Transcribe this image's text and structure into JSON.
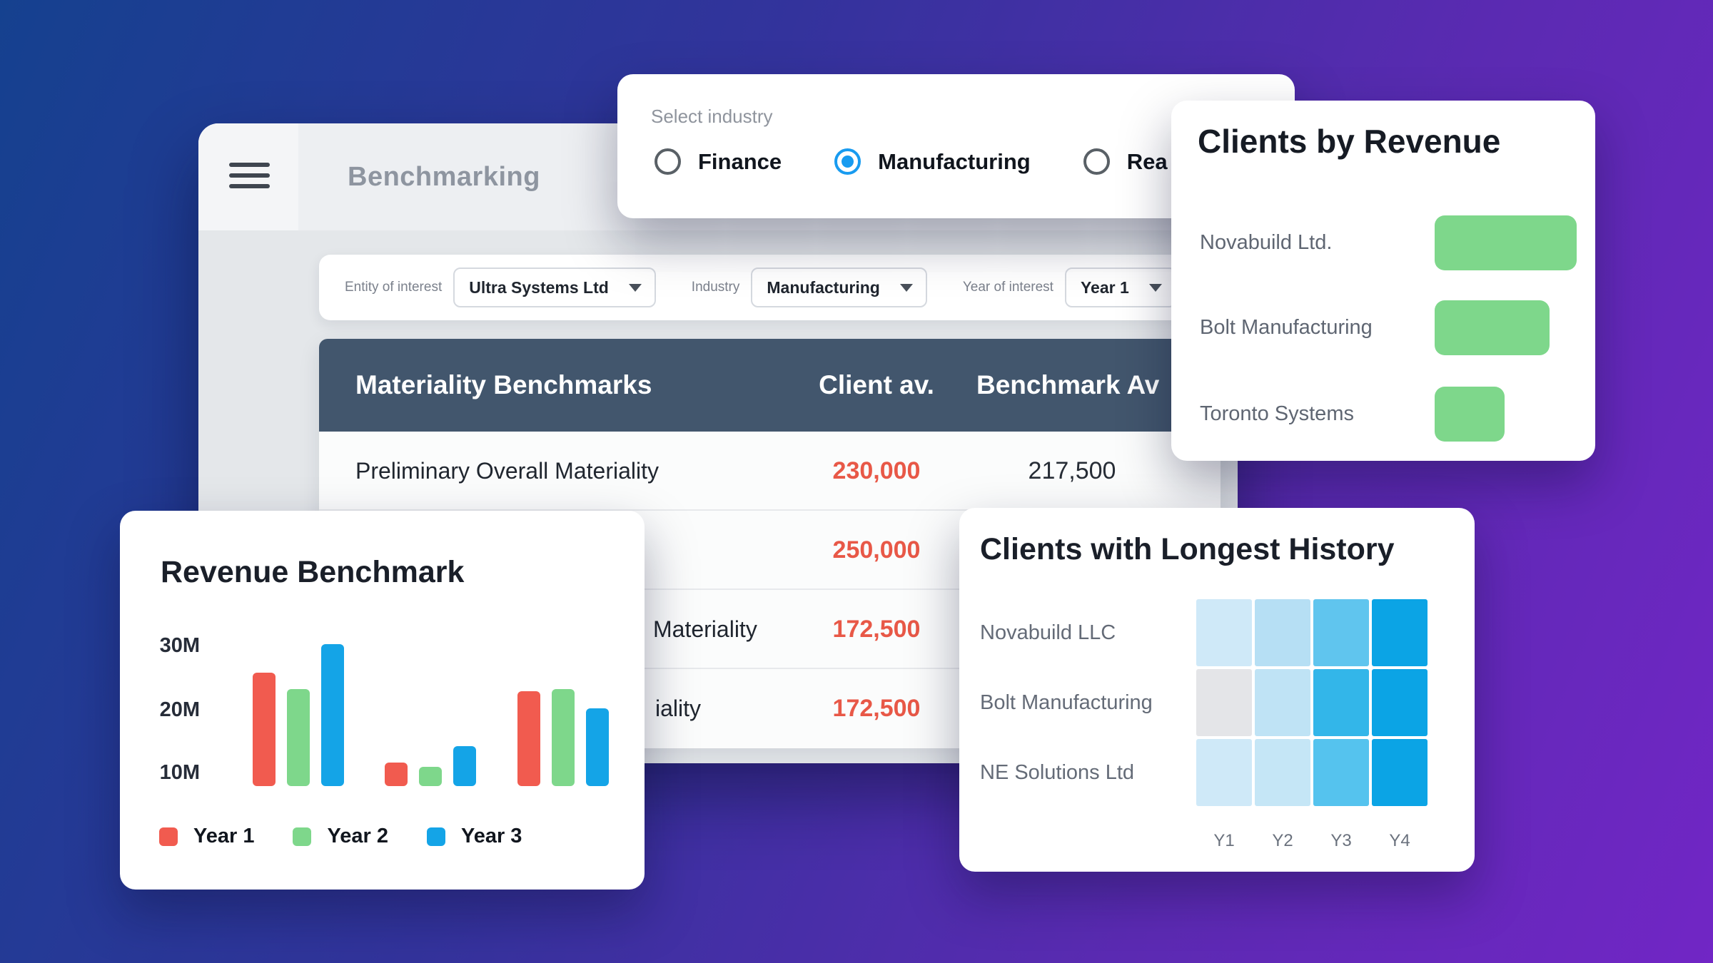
{
  "background": {
    "gradient_start": "#15418f",
    "gradient_end": "#7126c5"
  },
  "app_window": {
    "title": "Benchmarking",
    "filters": [
      {
        "label": "Entity of interest",
        "value": "Ultra Systems Ltd"
      },
      {
        "label": "Industry",
        "value": "Manufacturing"
      },
      {
        "label": "Year of interest",
        "value": "Year 1"
      }
    ],
    "table": {
      "columns": [
        "Materiality Benchmarks",
        "Client av.",
        "Benchmark Av"
      ],
      "header_bg": "#42566d",
      "client_value_color": "#e85847",
      "rows": [
        {
          "label": "Preliminary Overall Materiality",
          "client": "230,000",
          "benchmark": "217,500"
        },
        {
          "label": "",
          "client": "250,000",
          "benchmark": ""
        },
        {
          "label": "Materiality",
          "client": "172,500",
          "benchmark": ""
        },
        {
          "label": "iality",
          "client": "172,500",
          "benchmark": ""
        }
      ]
    }
  },
  "industry_selector": {
    "label": "Select industry",
    "selected_color": "#189bf0",
    "options": [
      {
        "label": "Finance",
        "selected": false
      },
      {
        "label": "Manufacturing",
        "selected": true
      },
      {
        "label": "Rea",
        "selected": false
      }
    ]
  },
  "clients_by_revenue": {
    "title": "Clients by Revenue",
    "bar_color": "#7ed78b",
    "clients": [
      {
        "name": "Novabuild Ltd.",
        "value": 100
      },
      {
        "name": "Bolt Manufacturing",
        "value": 81
      },
      {
        "name": "Toronto Systems",
        "value": 49
      }
    ]
  },
  "revenue_benchmark": {
    "title": "Revenue Benchmark",
    "y_ticks": [
      "30M",
      "20M",
      "10M"
    ],
    "legend": [
      {
        "label": "Year 1",
        "color": "#f15b4f"
      },
      {
        "label": "Year 2",
        "color": "#7ed78b"
      },
      {
        "label": "Year 3",
        "color": "#14a4e7"
      }
    ]
  },
  "clients_longest_history": {
    "title": "Clients with Longest History",
    "columns": [
      "Y1",
      "Y2",
      "Y3",
      "Y4"
    ],
    "rows": [
      {
        "name": "Novabuild LLC",
        "cells": [
          "#cfe9f8",
          "#b6dff4",
          "#60c5ee",
          "#0ba4e5"
        ]
      },
      {
        "name": "Bolt Manufacturing",
        "cells": [
          "#e4e5e8",
          "#bfe3f5",
          "#33b6e9",
          "#0ba4e5"
        ]
      },
      {
        "name": "NE Solutions Ltd",
        "cells": [
          "#cfe9f8",
          "#c5e6f6",
          "#55c3ee",
          "#0ba4e5"
        ]
      }
    ]
  },
  "chart_data": [
    {
      "type": "bar",
      "title": "Revenue Benchmark",
      "categories": [
        "",
        "",
        ""
      ],
      "series": [
        {
          "name": "Year 1",
          "color": "#f15b4f",
          "values": [
            24,
            5,
            20
          ]
        },
        {
          "name": "Year 2",
          "color": "#7ed78b",
          "values": [
            20.5,
            4,
            20.5
          ]
        },
        {
          "name": "Year 3",
          "color": "#14a4e7",
          "values": [
            30,
            8.5,
            16.5
          ]
        }
      ],
      "unit": "M",
      "yticks": [
        "10M",
        "20M",
        "30M"
      ],
      "ylim": [
        0,
        32
      ],
      "grid": false,
      "legend_position": "bottom"
    },
    {
      "type": "bar",
      "orientation": "horizontal",
      "title": "Clients by Revenue",
      "categories": [
        "Novabuild Ltd.",
        "Bolt Manufacturing",
        "Toronto Systems"
      ],
      "values": [
        100,
        81,
        49
      ],
      "unit": "relative",
      "color": "#7ed78b"
    },
    {
      "type": "heatmap",
      "title": "Clients with Longest History",
      "rows": [
        "Novabuild LLC",
        "Bolt Manufacturing",
        "NE Solutions Ltd"
      ],
      "columns": [
        "Y1",
        "Y2",
        "Y3",
        "Y4"
      ],
      "values": [
        [
          1,
          2,
          3,
          4
        ],
        [
          0,
          2,
          3,
          4
        ],
        [
          1,
          2,
          3,
          4
        ]
      ],
      "palette": [
        "#e4e5e8",
        "#cfe9f8",
        "#bfe3f5",
        "#55c3ee",
        "#0ba4e5"
      ]
    }
  ]
}
